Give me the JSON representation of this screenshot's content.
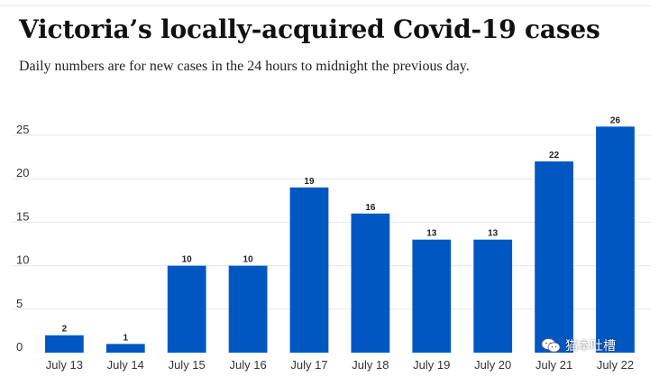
{
  "title": "Victoria’s locally-acquired Covid-19 cases",
  "subtitle": "Daily numbers are for new cases in the 24 hours to midnight the previous day.",
  "watermark": "猫本吐槽",
  "colors": {
    "bar": "#0057c2",
    "grid": "#e8e8e8",
    "text": "#333333"
  },
  "chart_data": {
    "type": "bar",
    "title": "Victoria’s locally-acquired Covid-19 cases",
    "subtitle": "Daily numbers are for new cases in the 24 hours to midnight the previous day.",
    "categories": [
      "July 13",
      "July 14",
      "July 15",
      "July 16",
      "July 17",
      "July 18",
      "July 19",
      "July 20",
      "July 21",
      "July 22"
    ],
    "values": [
      2,
      1,
      10,
      10,
      19,
      16,
      13,
      13,
      22,
      26
    ],
    "data_labels": [
      "2",
      "1",
      "10",
      "10",
      "19",
      "16",
      "13",
      "13",
      "22",
      "26"
    ],
    "ylim": [
      0,
      25
    ],
    "yticks": [
      0,
      5,
      10,
      15,
      20,
      25
    ],
    "ytick_labels": [
      "0",
      "5",
      "10",
      "15",
      "20",
      "25"
    ],
    "xlabel": "",
    "ylabel": "",
    "grid": true,
    "legend": "none"
  }
}
